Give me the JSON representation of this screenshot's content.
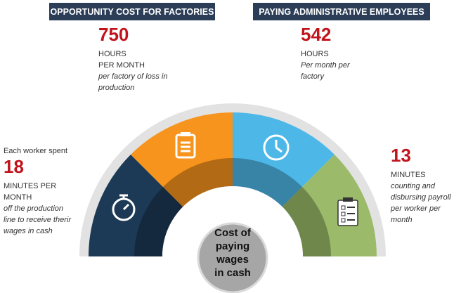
{
  "header": {
    "left": "OPPORTUNITY COST FOR FACTORIES",
    "right": "PAYING ADMINISTRATIVE EMPLOYEES"
  },
  "stats": [
    {
      "value": 750,
      "unit": [
        "HOURS",
        "PER MONTH"
      ],
      "description": [
        "per factory of loss in",
        "production"
      ]
    },
    {
      "value": 542,
      "unit": [
        "HOURS"
      ],
      "description": [
        "Per month per",
        "factory"
      ]
    },
    {
      "intro": "Each worker spent",
      "value": 18,
      "unit": [
        "MINUTES PER",
        "MONTH"
      ],
      "description": [
        "off the production",
        "line to receive therir",
        "wages in cash"
      ]
    },
    {
      "value": 13,
      "unit": [
        "MINUTES"
      ],
      "description": [
        "counting and",
        "disbursing payroll",
        "per worker per",
        "month"
      ]
    }
  ],
  "center": [
    "Cost of",
    "paying",
    "wages",
    "in cash"
  ]
}
